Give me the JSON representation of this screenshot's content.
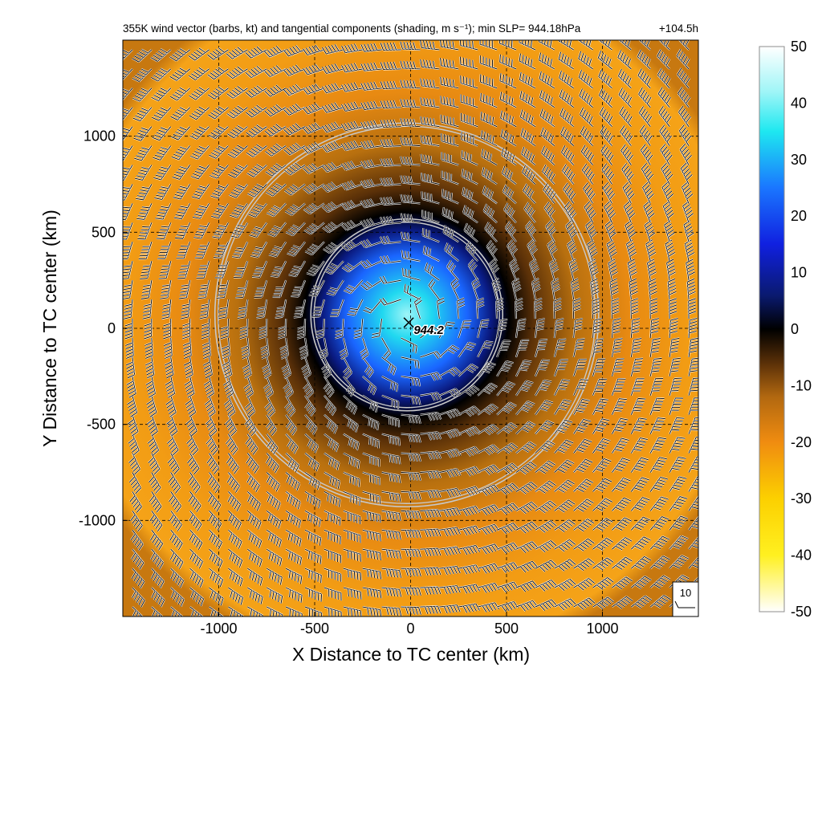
{
  "chart_data": {
    "type": "heatmap",
    "title": "355K wind vector (barbs, kt) and tangential components (shading, m s⁻¹); min SLP= 944.18hPa",
    "time_label": "+104.5h",
    "xlabel": "X Distance to TC center (km)",
    "ylabel": "Y Distance to TC center (km)",
    "xlim": [
      -1500,
      1500
    ],
    "ylim": [
      -1500,
      1500
    ],
    "xticks": [
      -1000,
      -500,
      0,
      500,
      1000
    ],
    "yticks": [
      -1000,
      -500,
      0,
      500,
      1000
    ],
    "grid": true,
    "colorbar": {
      "min": -50,
      "max": 50,
      "ticks": [
        50,
        40,
        30,
        20,
        10,
        0,
        -10,
        -20,
        -30,
        -40,
        -50
      ],
      "stops": [
        {
          "value": 50,
          "color": "#ffffff"
        },
        {
          "value": 42,
          "color": "#9ff5f7"
        },
        {
          "value": 35,
          "color": "#1ee8f0"
        },
        {
          "value": 25,
          "color": "#1a76ff"
        },
        {
          "value": 15,
          "color": "#1020e0"
        },
        {
          "value": 6,
          "color": "#0a1a70"
        },
        {
          "value": 0,
          "color": "#000000"
        },
        {
          "value": -6,
          "color": "#5a3008"
        },
        {
          "value": -12,
          "color": "#b26810"
        },
        {
          "value": -20,
          "color": "#f08c10"
        },
        {
          "value": -30,
          "color": "#fcd000"
        },
        {
          "value": -40,
          "color": "#fff020"
        },
        {
          "value": -50,
          "color": "#ffffff"
        }
      ]
    },
    "center_marker": {
      "x": -10,
      "y": 30,
      "label": "944.2"
    },
    "circles": [
      {
        "cx": -20,
        "cy": 70,
        "radius_km": 500
      },
      {
        "cx": -20,
        "cy": 70,
        "radius_km": 1000
      }
    ],
    "barb_grid_spacing_km": 100,
    "barb_reference": {
      "label": "10"
    }
  }
}
